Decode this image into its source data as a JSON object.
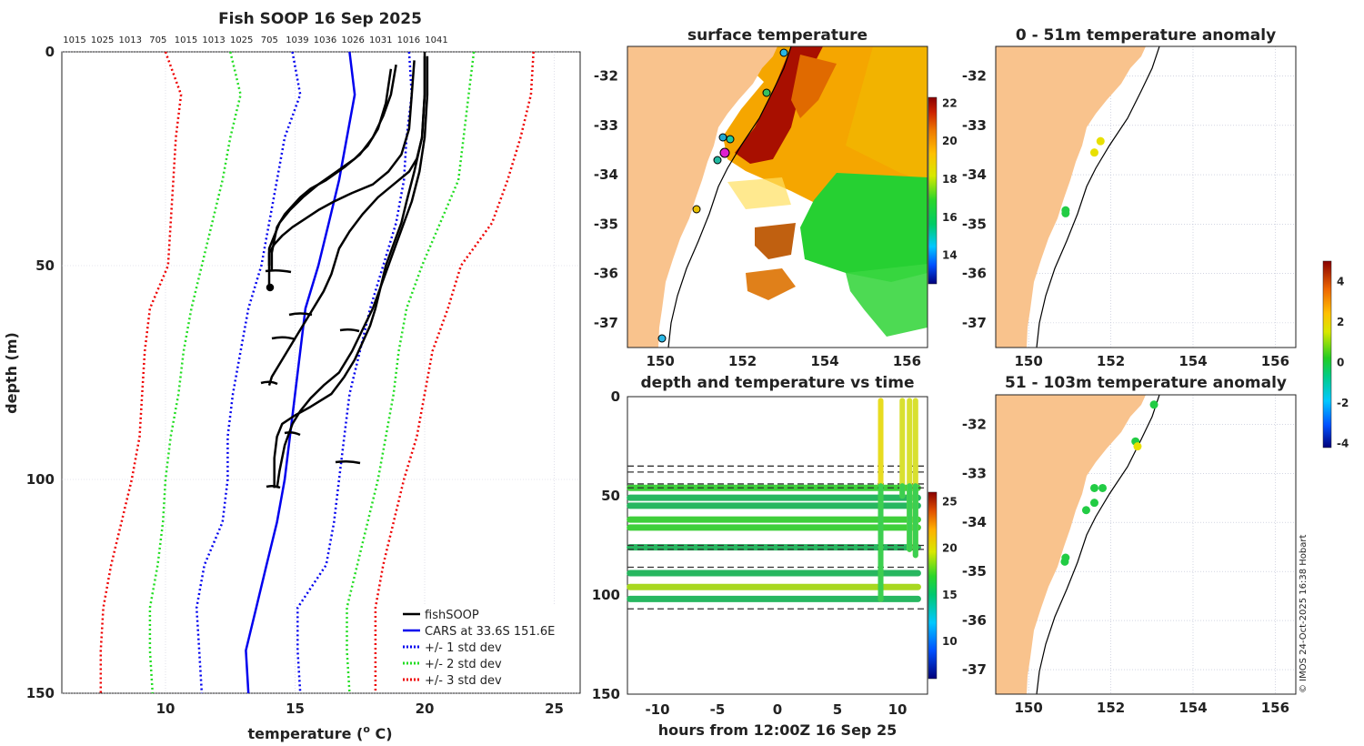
{
  "colors": {
    "land": "#f9c38d",
    "axis": "#222222",
    "grid": "#c8c8d8",
    "cars": "#0000ee",
    "std1": "#0000ee",
    "std2": "#22dd22",
    "std3": "#ee0000"
  },
  "profile_panel": {
    "title": "Fish SOOP 16 Sep 2025",
    "top_labels": [
      "1015",
      "1025",
      "1013",
      "705",
      "1015",
      "1013",
      "1025",
      "705",
      "1039",
      "1036",
      "1026",
      "1031",
      "1016",
      "1041"
    ],
    "xlabel": "temperature (",
    "xlabel_sup": "o",
    "xlabel_end": " C)",
    "ylabel": "depth (m)"
  },
  "legend": [
    "fishSOOP",
    "CARS at 33.6S 151.6E",
    "+/- 1 std dev",
    "+/- 2 std dev",
    "+/- 3 std dev"
  ],
  "sst_panel": {
    "title": "surface temperature"
  },
  "anom0_panel": {
    "title": "0 - 51m temperature anomaly"
  },
  "anom1_panel": {
    "title": "51 - 103m temperature anomaly"
  },
  "time_panel": {
    "title": "depth and temperature vs time",
    "xlabel": "hours from 12:00Z 16 Sep 25"
  },
  "copyright": "© IMOS 24-Oct-2025 16:38 Hobart",
  "chart_data": [
    {
      "type": "line",
      "title": "Fish SOOP 16 Sep 2025",
      "xlabel": "temperature (o C)",
      "ylabel": "depth (m)",
      "xlim": [
        6,
        26
      ],
      "ylim": [
        150,
        0
      ],
      "xticks": [
        10,
        15,
        20,
        25
      ],
      "yticks": [
        0,
        50,
        100,
        150
      ],
      "series": [
        {
          "name": "CARS at 33.6S 151.6E",
          "style": "solid-blue",
          "temp": [
            17.1,
            17.3,
            17.0,
            16.7,
            16.3,
            15.9,
            15.4,
            15.2,
            15.0,
            14.8,
            14.6,
            14.3,
            13.9,
            13.5,
            13.1,
            13.2
          ],
          "depth": [
            0,
            10,
            20,
            30,
            40,
            50,
            60,
            70,
            80,
            90,
            100,
            110,
            120,
            130,
            140,
            150
          ]
        },
        {
          "name": "+/- 1 std dev (low)",
          "style": "dot-blue",
          "temp": [
            14.9,
            15.2,
            14.6,
            14.3,
            14.0,
            13.7,
            13.2,
            12.9,
            12.6,
            12.4,
            12.4,
            12.2,
            11.5,
            11.2,
            11.3,
            11.4
          ],
          "depth": [
            0,
            10,
            20,
            30,
            40,
            50,
            60,
            70,
            80,
            90,
            100,
            110,
            120,
            130,
            140,
            150
          ]
        },
        {
          "name": "+/- 1 std dev (high)",
          "style": "dot-blue",
          "temp": [
            19.4,
            19.5,
            19.3,
            19.2,
            18.9,
            18.4,
            17.9,
            17.5,
            17.1,
            16.9,
            16.7,
            16.5,
            16.2,
            15.1,
            15.1,
            15.2
          ],
          "depth": [
            0,
            10,
            20,
            30,
            40,
            50,
            60,
            70,
            80,
            90,
            100,
            110,
            120,
            130,
            140,
            150
          ]
        },
        {
          "name": "+/- 2 std dev (low)",
          "style": "dot-green",
          "temp": [
            12.5,
            12.9,
            12.5,
            12.2,
            11.8,
            11.4,
            11.0,
            10.7,
            10.5,
            10.2,
            10.0,
            9.9,
            9.7,
            9.4,
            9.4,
            9.5
          ],
          "depth": [
            0,
            10,
            20,
            30,
            40,
            50,
            60,
            70,
            80,
            90,
            100,
            110,
            120,
            130,
            140,
            150
          ]
        },
        {
          "name": "+/- 2 std dev (high)",
          "style": "dot-green",
          "temp": [
            21.9,
            21.7,
            21.5,
            21.3,
            20.6,
            19.9,
            19.3,
            19.0,
            18.8,
            18.5,
            18.2,
            17.8,
            17.4,
            17.0,
            17.0,
            17.1
          ],
          "depth": [
            0,
            10,
            20,
            30,
            40,
            50,
            60,
            70,
            80,
            90,
            100,
            110,
            120,
            130,
            140,
            150
          ]
        },
        {
          "name": "+/- 3 std dev (low)",
          "style": "dot-red",
          "temp": [
            10.0,
            10.6,
            10.4,
            10.3,
            10.2,
            10.1,
            9.4,
            9.2,
            9.1,
            9.0,
            8.7,
            8.3,
            7.9,
            7.6,
            7.5,
            7.5
          ],
          "depth": [
            0,
            10,
            20,
            30,
            40,
            50,
            60,
            70,
            80,
            90,
            100,
            110,
            120,
            130,
            140,
            150
          ]
        },
        {
          "name": "+/- 3 std dev (high)",
          "style": "dot-red",
          "temp": [
            24.2,
            24.1,
            23.7,
            23.2,
            22.6,
            21.4,
            20.9,
            20.3,
            20.0,
            19.7,
            19.2,
            18.8,
            18.4,
            18.1,
            18.1,
            18.1
          ],
          "depth": [
            0,
            10,
            20,
            30,
            40,
            50,
            60,
            70,
            80,
            90,
            100,
            110,
            120,
            130,
            140,
            150
          ]
        },
        {
          "name": "fishSOOP cast a",
          "style": "solid-black",
          "temp": [
            18.9,
            18.7,
            18.4,
            18.0,
            17.5,
            16.9,
            16.2,
            15.6,
            15.2,
            14.9,
            14.6,
            14.3,
            14.2,
            14.1,
            14.1
          ],
          "depth": [
            3,
            10,
            15,
            20,
            24,
            27,
            30,
            32,
            34,
            36,
            38,
            41,
            44,
            47,
            51
          ]
        },
        {
          "name": "fishSOOP cast b",
          "style": "solid-black",
          "temp": [
            18.7,
            18.5,
            18.2,
            17.8,
            17.3,
            16.6,
            15.9,
            15.3,
            14.8,
            14.4,
            14.2,
            14.0,
            14.0
          ],
          "depth": [
            4,
            12,
            18,
            22,
            25,
            28,
            31,
            34,
            37,
            40,
            43,
            46,
            55
          ]
        },
        {
          "name": "fishSOOP cast c",
          "style": "solid-black",
          "temp": [
            19.6,
            19.5,
            19.4,
            19.1,
            18.6,
            18.0,
            17.2,
            16.5,
            15.9,
            15.4,
            14.9,
            14.5,
            14.2,
            14.0,
            14.0
          ],
          "depth": [
            2,
            10,
            18,
            24,
            28,
            31,
            33,
            35,
            37,
            39,
            41,
            43,
            45,
            47,
            50
          ]
        },
        {
          "name": "fishSOOP cast d",
          "style": "solid-black",
          "temp": [
            20.0,
            20.0,
            19.9,
            19.7,
            19.4,
            18.8,
            18.2,
            17.6,
            17.1,
            16.7,
            16.4,
            16.1,
            15.5,
            15.0,
            14.5,
            14.1,
            14.0
          ],
          "depth": [
            1,
            10,
            20,
            25,
            28,
            31,
            34,
            38,
            42,
            46,
            52,
            56,
            62,
            67,
            72,
            76,
            78
          ]
        },
        {
          "name": "fishSOOP cast e",
          "style": "solid-black",
          "temp": [
            20.0,
            20.0,
            19.9,
            19.6,
            19.3,
            19.1,
            18.8,
            18.5,
            18.3,
            18.1,
            17.9,
            17.6,
            17.3,
            16.9,
            16.4,
            15.6,
            15.0,
            14.5,
            14.3,
            14.2,
            14.2
          ],
          "depth": [
            0,
            10,
            20,
            28,
            35,
            40,
            45,
            50,
            55,
            60,
            64,
            68,
            72,
            76,
            80,
            83,
            85,
            87,
            90,
            95,
            102
          ]
        },
        {
          "name": "fishSOOP cast f",
          "style": "solid-black",
          "temp": [
            20.1,
            20.1,
            20.0,
            19.8,
            19.5,
            19.2,
            18.9,
            18.6,
            18.3,
            18.0,
            17.6,
            17.2,
            16.7,
            16.1,
            15.6,
            15.2,
            14.9,
            14.6,
            14.4,
            14.3
          ],
          "depth": [
            1,
            10,
            20,
            28,
            35,
            40,
            45,
            50,
            55,
            60,
            65,
            70,
            75,
            78,
            81,
            84,
            87,
            92,
            98,
            102
          ]
        }
      ],
      "legend": [
        "fishSOOP",
        "CARS at 33.6S 151.6E",
        "+/- 1 std dev",
        "+/- 2 std dev",
        "+/- 3 std dev"
      ]
    },
    {
      "type": "heatmap",
      "title": "surface temperature",
      "xticks": [
        150,
        152,
        154,
        156
      ],
      "yticks": [
        -32,
        -33,
        -34,
        -35,
        -36,
        -37
      ],
      "xlim": [
        149.2,
        156.5
      ],
      "ylim": [
        -37.5,
        -31.4
      ],
      "colorbar": {
        "min": 12.5,
        "max": 22.3,
        "ticks": [
          14,
          16,
          18,
          20,
          22
        ]
      }
    },
    {
      "type": "scatter",
      "title": "0 - 51m temperature anomaly",
      "xticks": [
        150,
        152,
        154,
        156
      ],
      "yticks": [
        -32,
        -33,
        -34,
        -35,
        -36,
        -37
      ],
      "xlim": [
        149.2,
        156.5
      ],
      "ylim": [
        -37.5,
        -31.4
      ],
      "points": [
        {
          "lon": 151.75,
          "lat": -33.32,
          "anom": 2.6
        },
        {
          "lon": 151.6,
          "lat": -33.55,
          "anom": 2.8
        },
        {
          "lon": 150.9,
          "lat": -34.72,
          "anom": 1.5
        },
        {
          "lon": 150.9,
          "lat": -34.78,
          "anom": 1.0
        }
      ],
      "colorbar": {
        "min": -4.2,
        "max": 5.0,
        "ticks": [
          -4,
          -2,
          0,
          2,
          4
        ]
      }
    },
    {
      "type": "scatter",
      "title": "51 - 103m temperature anomaly",
      "xticks": [
        150,
        152,
        154,
        156
      ],
      "yticks": [
        -32,
        -33,
        -34,
        -35,
        -36,
        -37
      ],
      "xlim": [
        149.2,
        156.5
      ],
      "ylim": [
        -37.5,
        -31.4
      ],
      "points": [
        {
          "lon": 153.05,
          "lat": -31.6,
          "anom": 0.6
        },
        {
          "lon": 152.6,
          "lat": -32.35,
          "anom": 2.0
        },
        {
          "lon": 152.65,
          "lat": -32.45,
          "anom": 2.3
        },
        {
          "lon": 151.8,
          "lat": -33.3,
          "anom": 0.4
        },
        {
          "lon": 151.6,
          "lat": -33.3,
          "anom": 0.3
        },
        {
          "lon": 151.6,
          "lat": -33.6,
          "anom": 0.2
        },
        {
          "lon": 151.4,
          "lat": -33.75,
          "anom": 0.5
        },
        {
          "lon": 150.9,
          "lat": -34.72,
          "anom": 0.3
        },
        {
          "lon": 150.88,
          "lat": -34.8,
          "anom": 0.4
        }
      ]
    },
    {
      "type": "scatter",
      "title": "depth and temperature vs time",
      "xlabel": "hours from 12:00Z 16 Sep 25",
      "xlim": [
        -12.5,
        12.5
      ],
      "ylim": [
        150,
        0
      ],
      "xticks": [
        -10,
        -5,
        0,
        5,
        10
      ],
      "yticks": [
        0,
        50,
        100,
        150
      ],
      "dashed_depths": [
        35,
        38,
        44,
        46,
        75,
        77,
        86,
        107
      ],
      "tows": [
        {
          "depth": 46,
          "temp": 16
        },
        {
          "depth": 51,
          "temp": 15
        },
        {
          "depth": 55,
          "temp": 15.5
        },
        {
          "depth": 62,
          "temp": 16.5
        },
        {
          "depth": 66,
          "temp": 16
        },
        {
          "depth": 76,
          "temp": 15
        },
        {
          "depth": 89,
          "temp": 15.5
        },
        {
          "depth": 96,
          "temp": 17
        },
        {
          "depth": 102,
          "temp": 15
        }
      ],
      "verticals": [
        {
          "hours": 8.6,
          "from": 2,
          "to": 102
        },
        {
          "hours": 10.4,
          "from": 2,
          "to": 50
        },
        {
          "hours": 11.0,
          "from": 2,
          "to": 77
        },
        {
          "hours": 11.5,
          "from": 2,
          "to": 80
        }
      ],
      "colorbar": {
        "min": 6,
        "max": 26,
        "ticks": [
          10,
          15,
          20,
          25
        ]
      }
    }
  ]
}
